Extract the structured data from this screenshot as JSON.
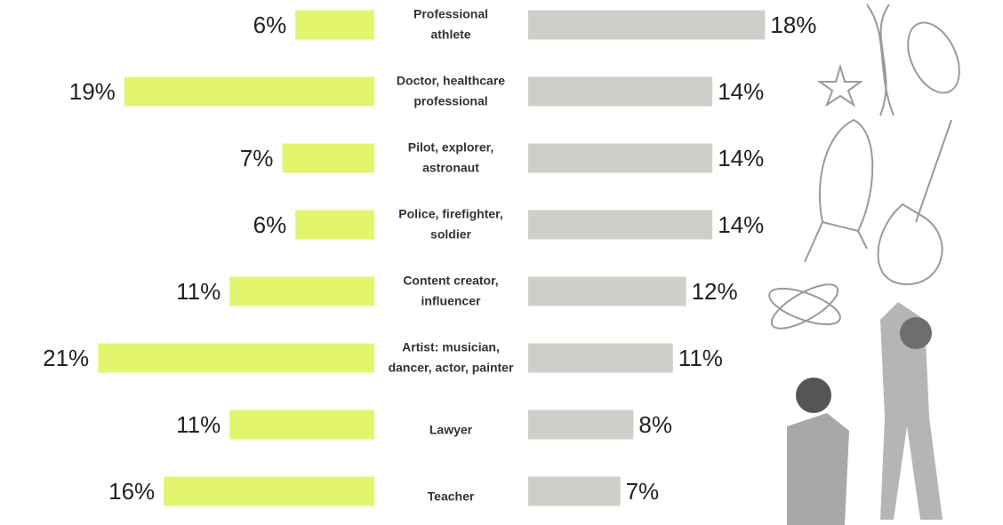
{
  "chart_data": {
    "type": "butterfly-bar",
    "categories": [
      [
        "Professional",
        "athlete"
      ],
      [
        "Doctor, healthcare",
        "professional"
      ],
      [
        "Pilot, explorer,",
        "astronaut"
      ],
      [
        "Police, firefighter,",
        "soldier"
      ],
      [
        "Content creator,",
        "influencer"
      ],
      [
        "Artist: musician,",
        "dancer, actor, painter"
      ],
      [
        "Lawyer"
      ],
      [
        "Teacher"
      ]
    ],
    "series": [
      {
        "color": "#e3f56c",
        "side": "left",
        "values": [
          6,
          19,
          7,
          6,
          11,
          21,
          11,
          16
        ],
        "value_labels": [
          "6%",
          "19%",
          "7%",
          "6%",
          "11%",
          "21%",
          "11%",
          "16%"
        ]
      },
      {
        "color": "#cfcfca",
        "side": "right",
        "values": [
          18,
          14,
          14,
          14,
          12,
          11,
          8,
          7
        ],
        "value_labels": [
          "18%",
          "14%",
          "14%",
          "14%",
          "12%",
          "11%",
          "8%",
          "7%"
        ]
      }
    ]
  }
}
